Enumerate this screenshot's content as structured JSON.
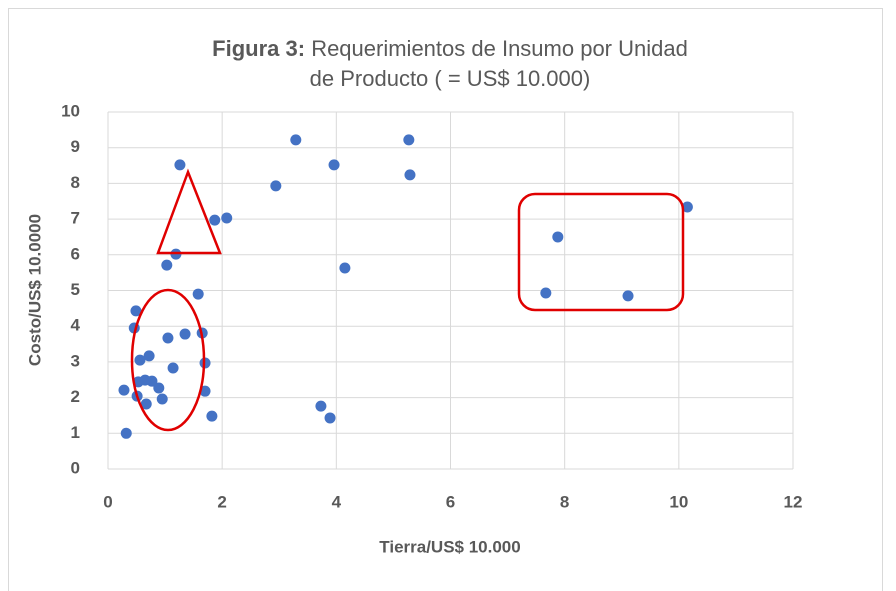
{
  "chart_data": {
    "type": "scatter",
    "title_label": "Figura 3:",
    "title": "Requerimientos de Insumo por Unidad de Producto ( = US$ 10.000)",
    "x_label": "Tierra/US$ 10.000",
    "y_label": "Costo/US$ 10.0000",
    "color": "#4472c4",
    "grid": true,
    "xlim": [
      0,
      12
    ],
    "xticks": [
      0,
      2,
      4,
      6,
      8,
      10,
      12
    ],
    "ylim": [
      0,
      10
    ],
    "yticks": [
      0,
      1,
      2,
      3,
      4,
      5,
      6,
      7,
      8,
      9,
      10
    ],
    "x": [
      0.32,
      0.28,
      0.51,
      0.67,
      0.53,
      0.65,
      0.77,
      0.89,
      0.95,
      0.56,
      0.72,
      0.46,
      0.49,
      1.05,
      1.14,
      1.35,
      1.65,
      1.7,
      1.7,
      1.82,
      1.58,
      1.03,
      1.19,
      1.26,
      1.87,
      2.08,
      2.94,
      3.29,
      3.96,
      4.15,
      5.27,
      5.29,
      3.73,
      3.89,
      7.67,
      7.88,
      9.11,
      10.15
    ],
    "values": [
      1.0,
      2.21,
      2.04,
      1.82,
      2.44,
      2.49,
      2.46,
      2.27,
      1.96,
      3.05,
      3.17,
      3.95,
      4.43,
      3.67,
      2.83,
      3.78,
      3.81,
      2.97,
      2.18,
      1.48,
      4.9,
      5.71,
      6.02,
      8.52,
      6.97,
      7.03,
      7.93,
      9.22,
      8.52,
      5.63,
      9.22,
      8.24,
      1.76,
      1.43,
      4.93,
      6.5,
      4.85,
      7.34
    ]
  }
}
